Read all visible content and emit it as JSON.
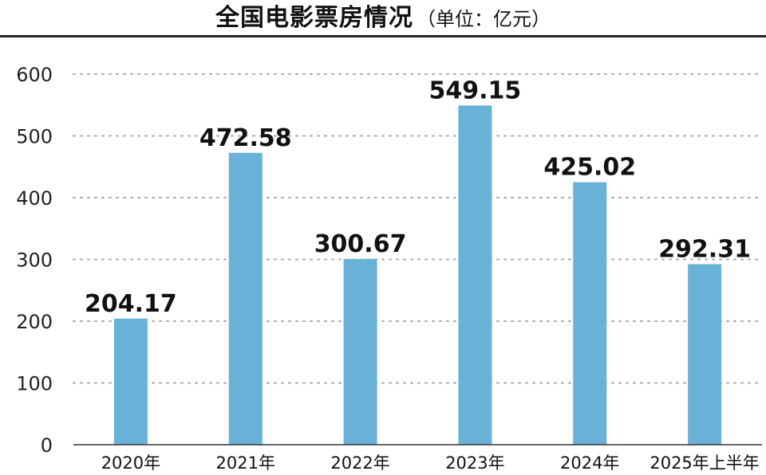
{
  "chart_data": {
    "type": "bar",
    "title": "全国电影票房情况",
    "subtitle": "（单位：亿元）",
    "categories": [
      "2020年",
      "2021年",
      "2022年",
      "2023年",
      "2024年",
      "2025年上半年"
    ],
    "values": [
      204.17,
      472.58,
      300.67,
      549.15,
      425.02,
      292.31
    ],
    "data_labels": [
      "204.17",
      "472.58",
      "300.67",
      "549.15",
      "425.02",
      "292.31"
    ],
    "ylim": [
      0,
      600
    ],
    "yticks": [
      "0",
      "100",
      "200",
      "300",
      "400",
      "500",
      "600"
    ],
    "grid": true,
    "legend": "none",
    "xlabel": "",
    "ylabel": ""
  },
  "colors": {
    "bar": "#67b2d6",
    "grid": "#a8a8a8",
    "axis": "#333333",
    "title_rule": "#222222"
  }
}
